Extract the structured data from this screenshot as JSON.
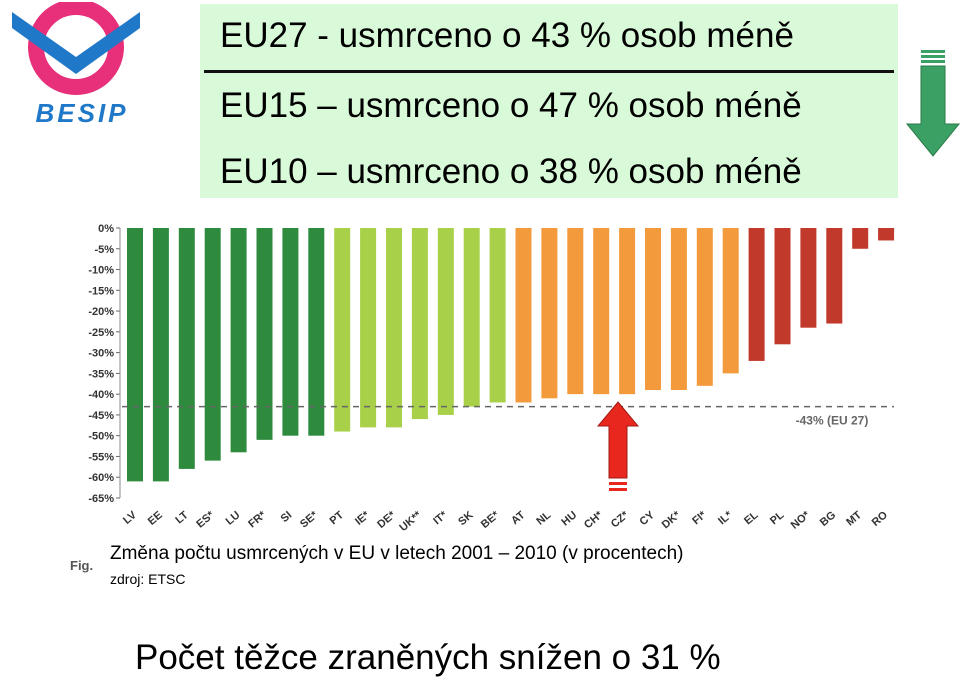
{
  "logo": {
    "text": "BESIP"
  },
  "headline": {
    "line1": "EU27 - usmrceno o 43 % osob méně",
    "line2": "EU15 – usmrceno o 47 % osob méně",
    "line3": "EU10 – usmrceno o 38 % osob méně"
  },
  "caption": {
    "fig_label": "Fig.",
    "text": "Změna počtu usmrcených v EU v letech 2001 – 2010 (v procentech)",
    "source": "zdroj: ETSC"
  },
  "bottom_text": "Počet těžce zraněných snížen o 31 %",
  "colors": {
    "green": "#2e8b3e",
    "lightgreen": "#a8d048",
    "orange": "#f39a3c",
    "red": "#c0392b",
    "arrow_green": "#3aa064",
    "arrow_red": "#e8281e"
  },
  "chart_data": {
    "type": "bar",
    "categories": [
      "LV",
      "EE",
      "LT",
      "ES*",
      "LU",
      "FR*",
      "SI",
      "SE*",
      "PT",
      "IE*",
      "DE*",
      "UK**",
      "IT*",
      "SK",
      "BE*",
      "AT",
      "NL",
      "HU",
      "CH*",
      "CZ*",
      "CY",
      "DK*",
      "FI*",
      "IL*",
      "EL",
      "PL",
      "NO*",
      "BG",
      "MT",
      "RO"
    ],
    "values": [
      -61,
      -61,
      -58,
      -56,
      -54,
      -51,
      -50,
      -50,
      -49,
      -48,
      -48,
      -46,
      -45,
      -43,
      -42,
      -42,
      -41,
      -40,
      -40,
      -40,
      -39,
      -39,
      -38,
      -35,
      -32,
      -28,
      -24,
      -23,
      -5,
      -3
    ],
    "color_groups": [
      "green",
      "green",
      "green",
      "green",
      "green",
      "green",
      "green",
      "green",
      "lightgreen",
      "lightgreen",
      "lightgreen",
      "lightgreen",
      "lightgreen",
      "lightgreen",
      "lightgreen",
      "orange",
      "orange",
      "orange",
      "orange",
      "orange",
      "orange",
      "orange",
      "orange",
      "orange",
      "red",
      "red",
      "red",
      "red",
      "red",
      "red"
    ],
    "y_ticks": [
      "0%",
      "-5%",
      "-10%",
      "-15%",
      "-20%",
      "-25%",
      "-30%",
      "-35%",
      "-40%",
      "-45%",
      "-50%",
      "-55%",
      "-60%",
      "-65%"
    ],
    "ylim": [
      -65,
      0
    ],
    "reference_line": {
      "value": -43,
      "label": "-43% (EU 27)"
    },
    "grid": false
  }
}
